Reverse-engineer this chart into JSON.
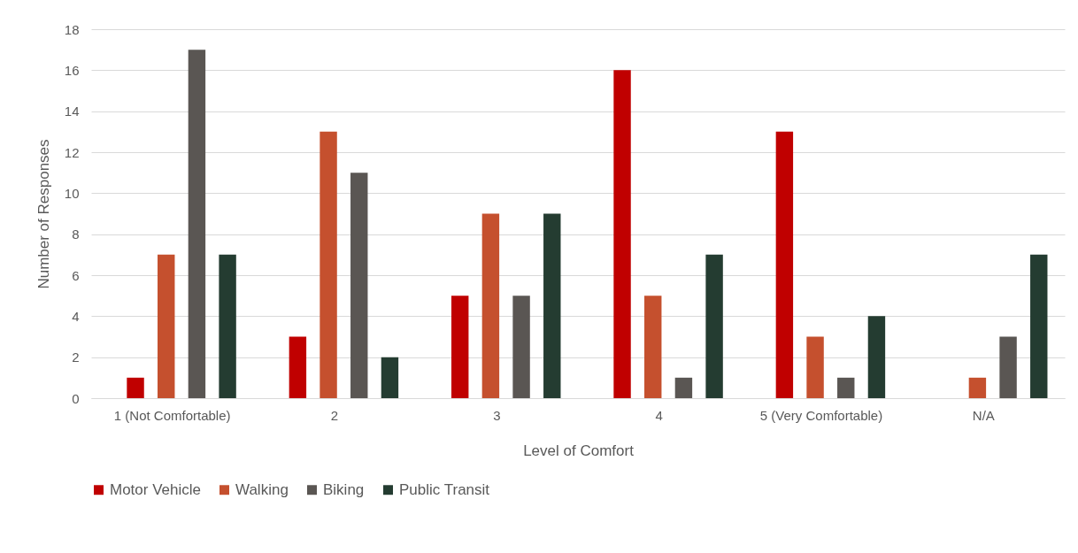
{
  "chart_data": {
    "type": "bar",
    "xlabel": "Level of Comfort",
    "ylabel": "Number of Responses",
    "categories": [
      "1 (Not Comfortable)",
      "2",
      "3",
      "4",
      "5 (Very Comfortable)",
      "N/A"
    ],
    "series": [
      {
        "name": "Motor Vehicle",
        "color": "#c00000",
        "values": [
          1,
          3,
          5,
          16,
          13,
          0
        ]
      },
      {
        "name": "Walking",
        "color": "#c5502e",
        "values": [
          7,
          13,
          9,
          5,
          3,
          1
        ]
      },
      {
        "name": "Biking",
        "color": "#5a5653",
        "values": [
          17,
          11,
          5,
          1,
          1,
          3
        ]
      },
      {
        "name": "Public Transit",
        "color": "#243c31",
        "values": [
          7,
          2,
          9,
          7,
          4,
          7
        ]
      }
    ],
    "ylim": [
      0,
      18
    ],
    "yticks": [
      0,
      2,
      4,
      6,
      8,
      10,
      12,
      14,
      16,
      18
    ],
    "grid": "y",
    "legend": "bottom"
  }
}
